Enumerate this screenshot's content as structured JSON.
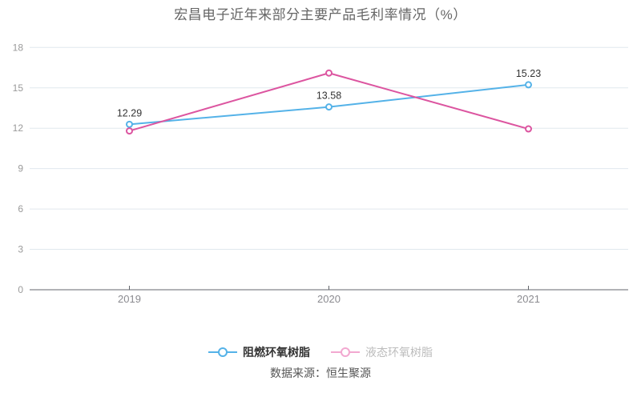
{
  "title": "宏昌电子近年来部分主要产品毛利率情况（%）",
  "source_note": "数据来源：恒生聚源",
  "colors": {
    "background": "#ffffff",
    "grid_line": "#e0e8ee",
    "axis_line": "#63666c",
    "x_tick_label": "#8b8b90",
    "y_tick_label": "#9a9a9a",
    "data_label": "#333333",
    "title_text": "#666666",
    "source_text": "#555555",
    "series_blue": "#54b2e8",
    "series_pink": "#dc55a0"
  },
  "legend": {
    "items": [
      {
        "label": "阻燃环氧树脂",
        "marker_color": "#54b2e8",
        "text_color": "#333333"
      },
      {
        "label": "液态环氧树脂",
        "marker_color": "#f2a8d0",
        "text_color": "#bcbcbc"
      }
    ]
  },
  "chart_data": {
    "type": "line",
    "title": "宏昌电子近年来部分主要产品毛利率情况（%）",
    "categories": [
      "2019",
      "2020",
      "2021"
    ],
    "series": [
      {
        "name": "阻燃环氧树脂",
        "color": "#54b2e8",
        "values": [
          12.29,
          13.58,
          15.23
        ],
        "show_labels": true
      },
      {
        "name": "液态环氧树脂",
        "color": "#dc55a0",
        "values": [
          11.8,
          16.1,
          11.95
        ],
        "show_labels": false
      }
    ],
    "xlabel": "",
    "ylabel": "",
    "ylim": [
      0,
      18
    ],
    "y_ticks": [
      0,
      3,
      6,
      9,
      12,
      15,
      18
    ],
    "grid": true,
    "legend_position": "bottom"
  }
}
